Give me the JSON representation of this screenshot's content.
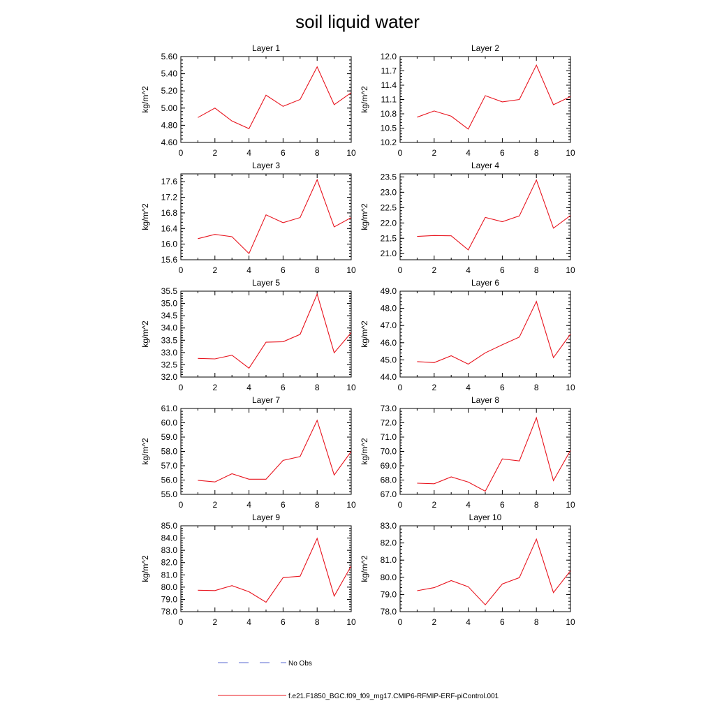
{
  "title": "soil liquid water",
  "legend": [
    {
      "label": "No Obs",
      "color": "#5a6ad0",
      "style": "dashed"
    },
    {
      "label": "f.e21.F1850_BGC.f09_f09_mg17.CMIP6-RFMIP-ERF-piControl.001",
      "color": "#e8141e",
      "style": "solid"
    }
  ],
  "chart_data": [
    {
      "type": "line",
      "title": "Layer 1",
      "ylabel": "kg/m^2",
      "xlim": [
        0,
        10
      ],
      "ylim": [
        4.6,
        5.6
      ],
      "xticks": [
        "0",
        "2",
        "4",
        "6",
        "8",
        "10"
      ],
      "yticks": [
        "4.60",
        "4.80",
        "5.00",
        "5.20",
        "5.40",
        "5.60"
      ],
      "x": [
        1,
        2,
        3,
        4,
        5,
        6,
        7,
        8,
        9,
        10
      ],
      "series": [
        {
          "values": [
            4.89,
            5.0,
            4.85,
            4.76,
            5.15,
            5.02,
            5.1,
            5.48,
            5.04,
            5.18
          ]
        }
      ]
    },
    {
      "type": "line",
      "title": "Layer 2",
      "ylabel": "kg/m^2",
      "xlim": [
        0,
        10
      ],
      "ylim": [
        10.2,
        12.0
      ],
      "xticks": [
        "0",
        "2",
        "4",
        "6",
        "8",
        "10"
      ],
      "yticks": [
        "10.2",
        "10.5",
        "10.8",
        "11.1",
        "11.4",
        "11.7",
        "12.0"
      ],
      "x": [
        1,
        2,
        3,
        4,
        5,
        6,
        7,
        8,
        9,
        10
      ],
      "series": [
        {
          "values": [
            10.73,
            10.86,
            10.75,
            10.48,
            11.18,
            11.05,
            11.1,
            11.82,
            10.99,
            11.16
          ]
        }
      ]
    },
    {
      "type": "line",
      "title": "Layer 3",
      "ylabel": "kg/m^2",
      "xlim": [
        0,
        10
      ],
      "ylim": [
        15.6,
        17.8
      ],
      "xticks": [
        "0",
        "2",
        "4",
        "6",
        "8",
        "10"
      ],
      "yticks": [
        "15.6",
        "16.0",
        "16.4",
        "16.8",
        "17.2",
        "17.6"
      ],
      "x": [
        1,
        2,
        3,
        4,
        5,
        6,
        7,
        8,
        9,
        10
      ],
      "series": [
        {
          "values": [
            16.14,
            16.25,
            16.19,
            15.76,
            16.75,
            16.55,
            16.68,
            17.65,
            16.44,
            16.68
          ]
        }
      ]
    },
    {
      "type": "line",
      "title": "Layer 4",
      "ylabel": "kg/m^2",
      "xlim": [
        0,
        10
      ],
      "ylim": [
        20.8,
        23.6
      ],
      "xticks": [
        "0",
        "2",
        "4",
        "6",
        "8",
        "10"
      ],
      "yticks": [
        "21.0",
        "21.5",
        "22.0",
        "22.5",
        "23.0",
        "23.5"
      ],
      "x": [
        1,
        2,
        3,
        4,
        5,
        6,
        7,
        8,
        9,
        10
      ],
      "series": [
        {
          "values": [
            21.56,
            21.59,
            21.58,
            21.12,
            22.18,
            22.04,
            22.23,
            23.4,
            21.83,
            22.24
          ]
        }
      ]
    },
    {
      "type": "line",
      "title": "Layer 5",
      "ylabel": "kg/m^2",
      "xlim": [
        0,
        10
      ],
      "ylim": [
        32.0,
        35.5
      ],
      "xticks": [
        "0",
        "2",
        "4",
        "6",
        "8",
        "10"
      ],
      "yticks": [
        "32.0",
        "32.5",
        "33.0",
        "33.5",
        "34.0",
        "34.5",
        "35.0",
        "35.5"
      ],
      "x": [
        1,
        2,
        3,
        4,
        5,
        6,
        7,
        8,
        9,
        10
      ],
      "series": [
        {
          "values": [
            32.76,
            32.74,
            32.89,
            32.36,
            33.42,
            33.44,
            33.74,
            35.38,
            32.99,
            33.81
          ]
        }
      ]
    },
    {
      "type": "line",
      "title": "Layer 6",
      "ylabel": "kg/m^2",
      "xlim": [
        0,
        10
      ],
      "ylim": [
        44.0,
        49.0
      ],
      "xticks": [
        "0",
        "2",
        "4",
        "6",
        "8",
        "10"
      ],
      "yticks": [
        "44.0",
        "45.0",
        "46.0",
        "47.0",
        "48.0",
        "49.0"
      ],
      "x": [
        1,
        2,
        3,
        4,
        5,
        6,
        7,
        8,
        9,
        10
      ],
      "series": [
        {
          "values": [
            44.9,
            44.84,
            45.24,
            44.75,
            45.41,
            45.88,
            46.33,
            48.4,
            45.13,
            46.5
          ]
        }
      ]
    },
    {
      "type": "line",
      "title": "Layer 7",
      "ylabel": "kg/m^2",
      "xlim": [
        0,
        10
      ],
      "ylim": [
        55.0,
        61.0
      ],
      "xticks": [
        "0",
        "2",
        "4",
        "6",
        "8",
        "10"
      ],
      "yticks": [
        "55.0",
        "56.0",
        "57.0",
        "58.0",
        "59.0",
        "60.0",
        "61.0"
      ],
      "x": [
        1,
        2,
        3,
        4,
        5,
        6,
        7,
        8,
        9,
        10
      ],
      "series": [
        {
          "values": [
            55.98,
            55.87,
            56.44,
            56.06,
            56.06,
            57.37,
            57.64,
            60.17,
            56.35,
            58.0
          ]
        }
      ]
    },
    {
      "type": "line",
      "title": "Layer 8",
      "ylabel": "kg/m^2",
      "xlim": [
        0,
        10
      ],
      "ylim": [
        67.0,
        73.0
      ],
      "xticks": [
        "0",
        "2",
        "4",
        "6",
        "8",
        "10"
      ],
      "yticks": [
        "67.0",
        "68.0",
        "69.0",
        "70.0",
        "71.0",
        "72.0",
        "73.0"
      ],
      "x": [
        1,
        2,
        3,
        4,
        5,
        6,
        7,
        8,
        9,
        10
      ],
      "series": [
        {
          "values": [
            67.78,
            67.74,
            68.22,
            67.86,
            67.22,
            69.48,
            69.33,
            72.35,
            67.96,
            70.07
          ]
        }
      ]
    },
    {
      "type": "line",
      "title": "Layer 9",
      "ylabel": "kg/m^2",
      "xlim": [
        0,
        10
      ],
      "ylim": [
        78.0,
        85.0
      ],
      "xticks": [
        "0",
        "2",
        "4",
        "6",
        "8",
        "10"
      ],
      "yticks": [
        "78.0",
        "79.0",
        "80.0",
        "81.0",
        "82.0",
        "83.0",
        "84.0",
        "85.0"
      ],
      "x": [
        1,
        2,
        3,
        4,
        5,
        6,
        7,
        8,
        9,
        10
      ],
      "series": [
        {
          "values": [
            79.75,
            79.72,
            80.12,
            79.62,
            78.77,
            80.77,
            80.89,
            83.97,
            79.27,
            81.73
          ]
        }
      ]
    },
    {
      "type": "line",
      "title": "Layer 10",
      "ylabel": "kg/m^2",
      "xlim": [
        0,
        10
      ],
      "ylim": [
        78.0,
        83.0
      ],
      "xticks": [
        "0",
        "2",
        "4",
        "6",
        "8",
        "10"
      ],
      "yticks": [
        "78.0",
        "79.0",
        "80.0",
        "81.0",
        "82.0",
        "83.0"
      ],
      "x": [
        1,
        2,
        3,
        4,
        5,
        6,
        7,
        8,
        9,
        10
      ],
      "series": [
        {
          "values": [
            79.22,
            79.4,
            79.81,
            79.45,
            78.4,
            79.61,
            79.98,
            82.22,
            79.11,
            80.38
          ]
        }
      ]
    }
  ]
}
